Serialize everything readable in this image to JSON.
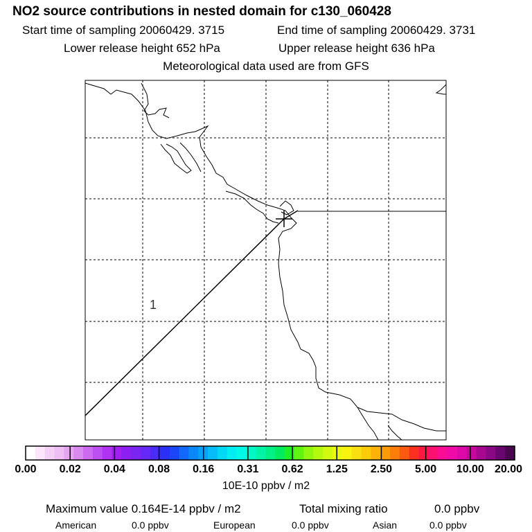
{
  "header": {
    "title": "NO2 source contributions in nested domain for c130_060428",
    "start_time": "Start time of sampling 20060429.  3715",
    "end_time": "End time of sampling 20060429.  3731",
    "lower_height": "Lower release height  652 hPa",
    "upper_height": "Upper release height  636 hPa",
    "met_data": "Meteorological data used are from GFS"
  },
  "map": {
    "trajectory_label": "1",
    "line_color": "#000000"
  },
  "colorbar": {
    "tick_labels": [
      "0.00",
      "0.02",
      "0.04",
      "0.08",
      "0.16",
      "0.31",
      "0.62",
      "1.25",
      "2.50",
      "5.00",
      "10.00",
      "20.00"
    ],
    "units": "10E-10 ppbv / m2",
    "colors": [
      "#ffffff",
      "#fbe6fb",
      "#f4d0f6",
      "#eebdf4",
      "#e6a5f0",
      "#d98aee",
      "#cc6af0",
      "#bc4ff2",
      "#b033f4",
      "#a020f0",
      "#8c1ff2",
      "#7a25f4",
      "#6628f6",
      "#4a2cf8",
      "#2c2ff6",
      "#1a45f8",
      "#1268fa",
      "#0a88fa",
      "#06a2fa",
      "#06bcf8",
      "#00d8f6",
      "#00eef2",
      "#00fae8",
      "#00f8c8",
      "#00f4a6",
      "#00f088",
      "#00ec5e",
      "#1ef028",
      "#60f410",
      "#90f810",
      "#b4fa10",
      "#d2fa10",
      "#e8fa10",
      "#f8f410",
      "#fae010",
      "#fccc08",
      "#fcb208",
      "#fc9a08",
      "#fc7e08",
      "#fc5a10",
      "#fc3020",
      "#fc1840",
      "#fc1070",
      "#fa0c96",
      "#f00aa8",
      "#dc08a8",
      "#c6089c",
      "#a80890",
      "#8a0884",
      "#6a0670",
      "#4a0450"
    ]
  },
  "footer": {
    "max_value": "Maximum value  0.164E-14 ppbv / m2",
    "total_mixing_label": "Total mixing ratio",
    "total_mixing_value": "0.0 ppbv",
    "american_label": "American",
    "american_value": "0.0 ppbv",
    "european_label": "European",
    "european_value": "0.0 ppbv",
    "asian_label": "Asian",
    "asian_value": "0.0 ppbv"
  }
}
